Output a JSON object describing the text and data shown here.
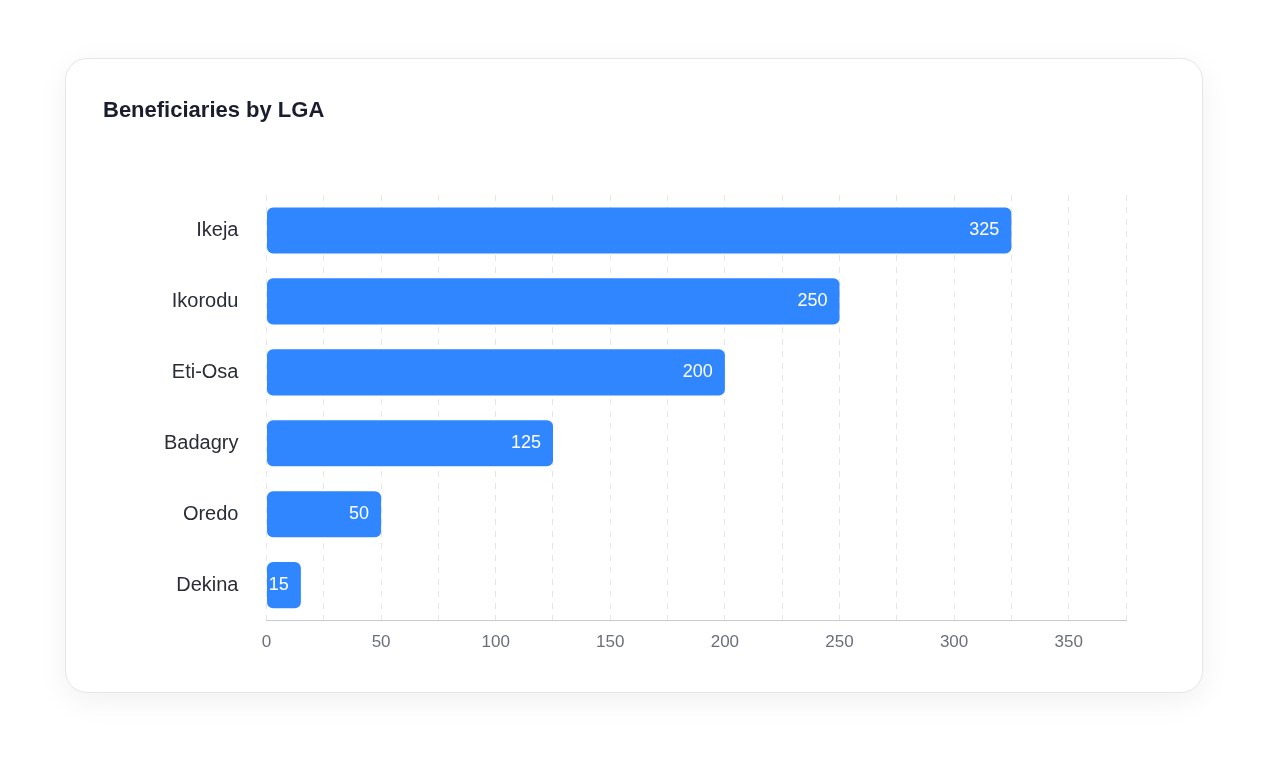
{
  "chart_data": {
    "type": "bar",
    "title": "Beneficiaries by LGA",
    "orientation": "horizontal",
    "categories": [
      "Ikeja",
      "Ikorodu",
      "Eti-Osa",
      "Badagry",
      "Oredo",
      "Dekina"
    ],
    "values": [
      325,
      250,
      200,
      125,
      50,
      15
    ],
    "color": "#2f86ff",
    "xlim": [
      0,
      375
    ],
    "xticks": [
      0,
      {
        "value": 25,
        "label": null
      },
      50,
      {
        "value": 75,
        "label": null
      },
      100,
      {
        "value": 125,
        "label": null
      },
      150,
      {
        "value": 175,
        "label": null
      },
      200,
      {
        "value": 225,
        "label": null
      },
      250,
      {
        "value": 275,
        "label": null
      },
      300,
      {
        "value": 325,
        "label": null
      },
      350,
      {
        "value": 375,
        "label": null
      }
    ],
    "grid": "x",
    "legend": false,
    "data_labels": true
  }
}
